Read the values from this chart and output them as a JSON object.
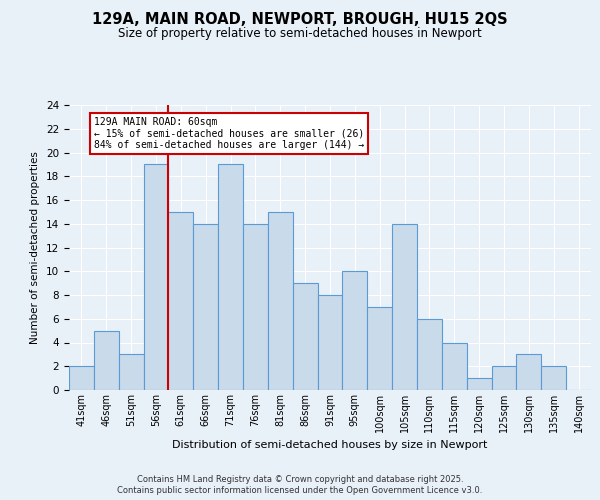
{
  "title_line1": "129A, MAIN ROAD, NEWPORT, BROUGH, HU15 2QS",
  "title_line2": "Size of property relative to semi-detached houses in Newport",
  "xlabel": "Distribution of semi-detached houses by size in Newport",
  "ylabel": "Number of semi-detached properties",
  "categories": [
    "41sqm",
    "46sqm",
    "51sqm",
    "56sqm",
    "61sqm",
    "66sqm",
    "71sqm",
    "76sqm",
    "81sqm",
    "86sqm",
    "91sqm",
    "95sqm",
    "100sqm",
    "105sqm",
    "110sqm",
    "115sqm",
    "120sqm",
    "125sqm",
    "130sqm",
    "135sqm",
    "140sqm"
  ],
  "values": [
    2,
    5,
    3,
    19,
    15,
    14,
    19,
    14,
    15,
    9,
    8,
    10,
    7,
    14,
    6,
    4,
    1,
    2,
    3,
    2,
    0
  ],
  "bar_color": "#c9daea",
  "bar_edge_color": "#5b9bd5",
  "vline_index": 3.5,
  "ylim": [
    0,
    24
  ],
  "yticks": [
    0,
    2,
    4,
    6,
    8,
    10,
    12,
    14,
    16,
    18,
    20,
    22,
    24
  ],
  "annotation_text": "129A MAIN ROAD: 60sqm\n← 15% of semi-detached houses are smaller (26)\n84% of semi-detached houses are larger (144) →",
  "annotation_box_color": "#ffffff",
  "annotation_box_edge": "#cc0000",
  "footer_line1": "Contains HM Land Registry data © Crown copyright and database right 2025.",
  "footer_line2": "Contains public sector information licensed under the Open Government Licence v3.0.",
  "background_color": "#e8f0f8",
  "plot_bg_color": "#e8f0f8",
  "vline_color": "#cc0000",
  "figsize": [
    6.0,
    5.0
  ],
  "dpi": 100
}
